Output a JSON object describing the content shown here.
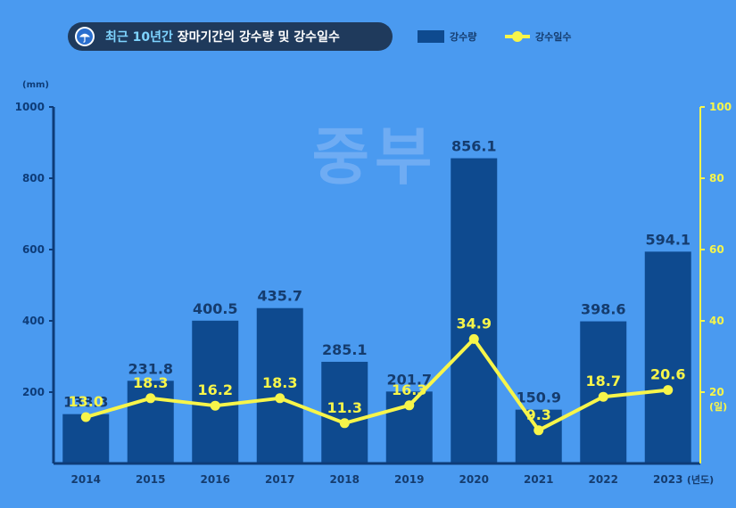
{
  "title": {
    "highlight": "최근 10년간",
    "rest": "장마기간의  강수량 및 강수일수"
  },
  "legend": {
    "bar_label": "강수량",
    "line_label": "강수일수"
  },
  "watermark": "중부",
  "colors": {
    "background": "#4a9af0",
    "bar": "#0e4a8f",
    "line": "#f7f54a",
    "axis": "#0e3c78",
    "text_dark": "#153c6e"
  },
  "chart_data": {
    "type": "bar+line",
    "categories": [
      "2014",
      "2015",
      "2016",
      "2017",
      "2018",
      "2019",
      "2020",
      "2021",
      "2022",
      "2023"
    ],
    "series": [
      {
        "name": "강수량",
        "type": "bar",
        "axis": "left",
        "values": [
          138.3,
          231.8,
          400.5,
          435.7,
          285.1,
          201.7,
          856.1,
          150.9,
          398.6,
          594.1
        ]
      },
      {
        "name": "강수일수",
        "type": "line",
        "axis": "right",
        "values": [
          13.0,
          18.3,
          16.2,
          18.3,
          11.3,
          16.3,
          34.9,
          9.3,
          18.7,
          20.6
        ]
      }
    ],
    "left_axis": {
      "unit": "(mm)",
      "ticks": [
        "200",
        "400",
        "600",
        "800",
        "1000"
      ],
      "range": [
        0,
        1000
      ]
    },
    "right_axis": {
      "unit": "(일)",
      "ticks": [
        "20",
        "40",
        "60",
        "80",
        "100"
      ],
      "range": [
        0,
        100
      ]
    },
    "x_unit": "(년도)"
  }
}
